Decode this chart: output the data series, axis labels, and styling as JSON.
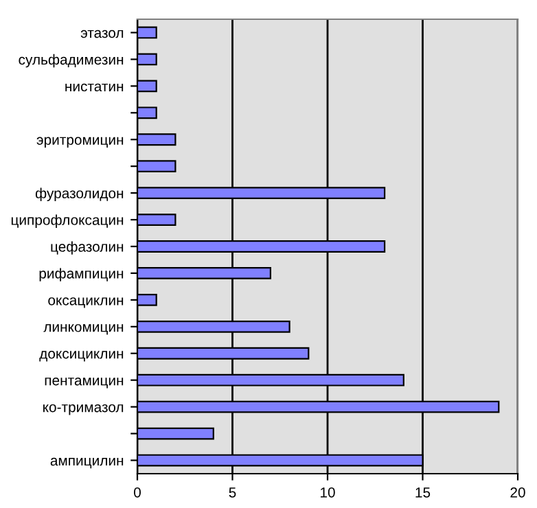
{
  "chart_data": {
    "type": "bar",
    "orientation": "horizontal",
    "categories": [
      "этазол",
      "сульфадимезин",
      "нистатин",
      null,
      "эритромицин",
      null,
      "фуразолидон",
      "ципрофлоксацин",
      "цефазолин",
      "рифампицин",
      "оксациклин",
      "линкомицин",
      "доксициклин",
      "пентамицин",
      "ко-тримазол",
      null,
      "ампицилин"
    ],
    "values": [
      1,
      1,
      1,
      1,
      2,
      2,
      13,
      2,
      13,
      7,
      1,
      8,
      9,
      14,
      19,
      4,
      15
    ],
    "color": "#8080ff",
    "xlim": [
      0,
      20
    ],
    "xticks": [
      0,
      5,
      10,
      15,
      20
    ],
    "grid": "x",
    "legend": false
  }
}
